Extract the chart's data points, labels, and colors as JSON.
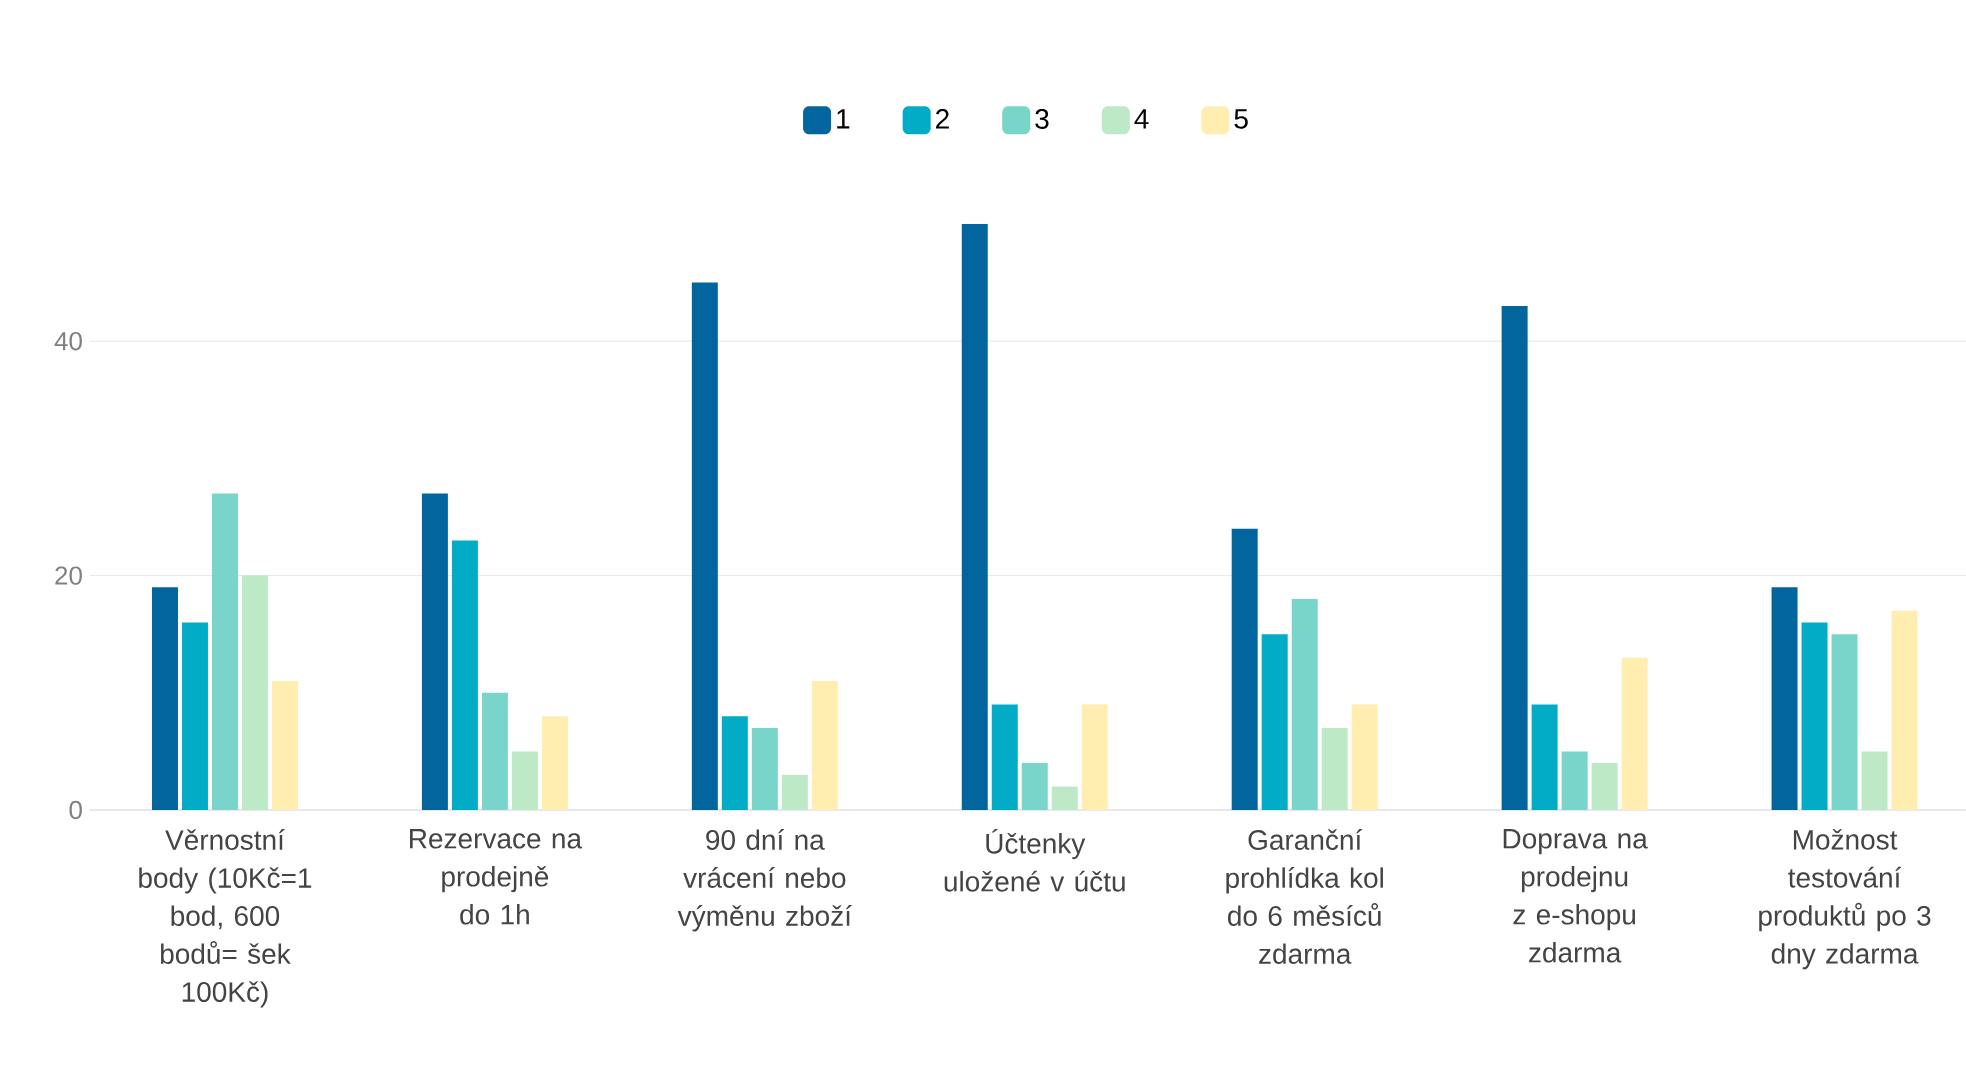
{
  "chart_data": {
    "type": "bar",
    "categories": [
      "Věrnostní body (10Kč=1 bod, 600 bodů= šek 100Kč)",
      "Rezervace na prodejně do 1h",
      "90 dní na vrácení nebo výměnu zboží",
      "Účtenky uložené v účtu",
      "Garanční prohlídka kol do 6 měsíců zdarma",
      "Doprava na prodejnu z e-shopu zdarma",
      "Možnost testování produktů po 3 dny zdarma"
    ],
    "series": [
      {
        "name": "1",
        "color": "#03659e",
        "values": [
          19,
          27,
          45,
          50,
          24,
          43,
          19
        ]
      },
      {
        "name": "2",
        "color": "#03acc6",
        "values": [
          16,
          23,
          8,
          9,
          15,
          9,
          16
        ]
      },
      {
        "name": "3",
        "color": "#79d5c9",
        "values": [
          27,
          10,
          7,
          4,
          18,
          5,
          15
        ]
      },
      {
        "name": "4",
        "color": "#bde9c7",
        "values": [
          20,
          5,
          3,
          2,
          7,
          4,
          5
        ]
      },
      {
        "name": "5",
        "color": "#ffeeb0",
        "values": [
          11,
          8,
          11,
          9,
          9,
          13,
          17
        ]
      }
    ],
    "ylim": [
      0,
      50
    ],
    "yticks": [
      0,
      20,
      40
    ],
    "grid": "y",
    "legend": "top"
  }
}
